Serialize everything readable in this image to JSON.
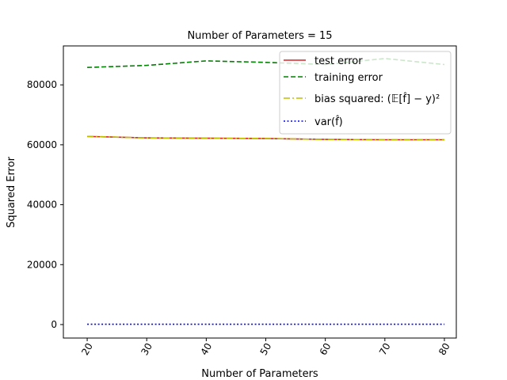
{
  "chart_data": {
    "type": "line",
    "title": "Number of Parameters = 15",
    "xlabel": "Number of Parameters",
    "ylabel": "Squared Error",
    "xlim": [
      16,
      82
    ],
    "ylim": [
      -4500,
      93000
    ],
    "x_ticks": [
      20,
      30,
      40,
      50,
      60,
      70,
      80
    ],
    "y_ticks": [
      0,
      20000,
      40000,
      60000,
      80000
    ],
    "x_tick_rotation_deg": -60,
    "grid": false,
    "legend_position": "top-right",
    "x": [
      20,
      30,
      40,
      50,
      60,
      70,
      80
    ],
    "series": [
      {
        "name": "training error",
        "color": "#008000",
        "style": "dashed",
        "values": [
          85800,
          86500,
          88000,
          87500,
          86800,
          88800,
          86800
        ]
      },
      {
        "name": "test error",
        "color": "#d62728",
        "style": "solid",
        "values": [
          62800,
          62300,
          62200,
          62100,
          61800,
          61700,
          61700
        ]
      },
      {
        "name": "bias squared: (𝔼[f̂] − y)²",
        "color": "#bfbf00",
        "style": "dashdot",
        "values": [
          62800,
          62300,
          62200,
          62100,
          61800,
          61700,
          61700
        ]
      },
      {
        "name": "var(f̂)",
        "color": "#0000ff",
        "style": "dotted",
        "values": [
          100,
          100,
          100,
          100,
          100,
          100,
          100
        ]
      }
    ],
    "legend_order": [
      "test error",
      "training error",
      "bias squared: (𝔼[f̂] − y)²",
      "var(f̂)"
    ]
  }
}
